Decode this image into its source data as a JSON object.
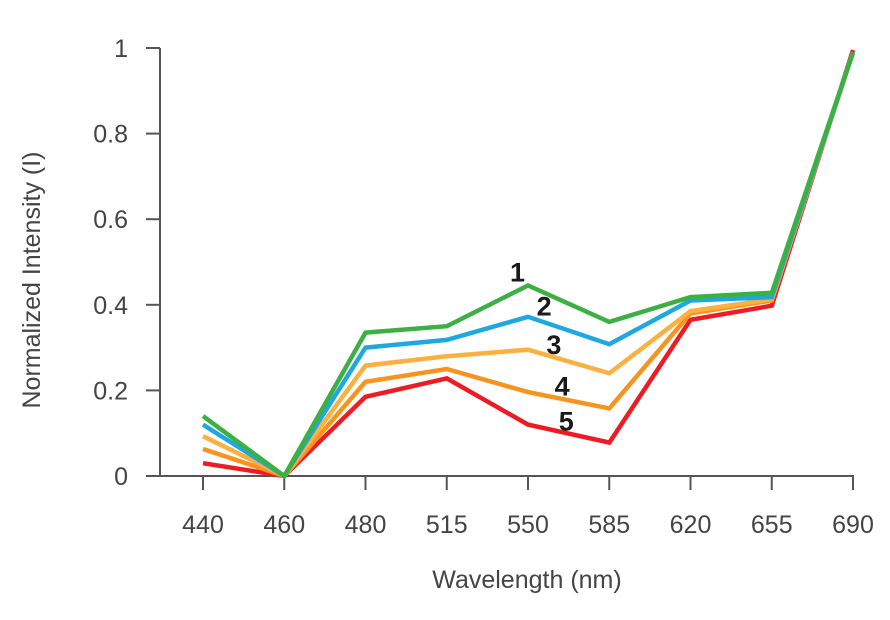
{
  "chart_data": {
    "type": "line",
    "title": "",
    "xlabel": "Wavelength (nm)",
    "ylabel": "Normalized Intensity (I)",
    "categories": [
      "440",
      "460",
      "480",
      "515",
      "550",
      "585",
      "620",
      "655",
      "690"
    ],
    "ylim": [
      0,
      1
    ],
    "yticks": [
      "0",
      "0.2",
      "0.4",
      "0.6",
      "0.8",
      "1"
    ],
    "grid": false,
    "legend": "none",
    "series": [
      {
        "name": "1",
        "color": "#3cb043",
        "values": [
          0.14,
          0.0,
          0.335,
          0.35,
          0.445,
          0.36,
          0.418,
          0.428,
          0.99
        ]
      },
      {
        "name": "2",
        "color": "#1ea7e1",
        "values": [
          0.12,
          0.0,
          0.3,
          0.318,
          0.372,
          0.308,
          0.41,
          0.418,
          0.99
        ]
      },
      {
        "name": "3",
        "color": "#fbb040",
        "values": [
          0.093,
          0.0,
          0.258,
          0.28,
          0.295,
          0.24,
          0.385,
          0.413,
          0.99
        ]
      },
      {
        "name": "4",
        "color": "#f7931e",
        "values": [
          0.063,
          0.0,
          0.22,
          0.25,
          0.196,
          0.158,
          0.38,
          0.41,
          0.99
        ]
      },
      {
        "name": "5",
        "color": "#ed1c24",
        "values": [
          0.03,
          0.0,
          0.185,
          0.228,
          0.12,
          0.078,
          0.365,
          0.398,
          0.995
        ]
      }
    ]
  }
}
